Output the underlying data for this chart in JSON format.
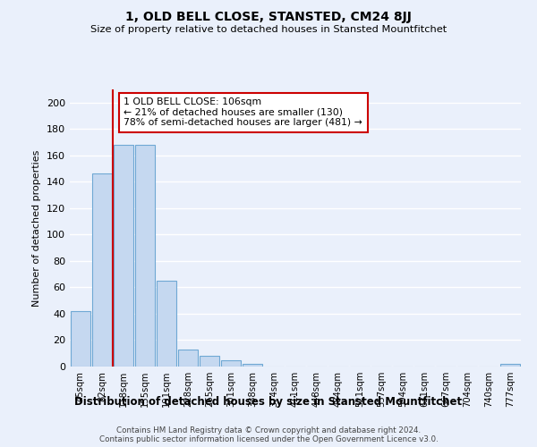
{
  "title1": "1, OLD BELL CLOSE, STANSTED, CM24 8JJ",
  "title2": "Size of property relative to detached houses in Stansted Mountfitchet",
  "xlabel": "Distribution of detached houses by size in Stansted Mountfitchet",
  "ylabel": "Number of detached properties",
  "categories": [
    "45sqm",
    "82sqm",
    "118sqm",
    "155sqm",
    "191sqm",
    "228sqm",
    "265sqm",
    "301sqm",
    "338sqm",
    "374sqm",
    "411sqm",
    "448sqm",
    "484sqm",
    "521sqm",
    "557sqm",
    "594sqm",
    "631sqm",
    "667sqm",
    "704sqm",
    "740sqm",
    "777sqm"
  ],
  "values": [
    42,
    146,
    168,
    168,
    65,
    13,
    8,
    5,
    2,
    0,
    0,
    0,
    0,
    0,
    0,
    0,
    0,
    0,
    0,
    0,
    2
  ],
  "bar_color": "#c5d8f0",
  "bar_edge_color": "#6fa8d4",
  "red_line_x": 1.5,
  "annotation_line1": "1 OLD BELL CLOSE: 106sqm",
  "annotation_line2": "← 21% of detached houses are smaller (130)",
  "annotation_line3": "78% of semi-detached houses are larger (481) →",
  "annotation_box_color": "#ffffff",
  "annotation_box_edge": "#cc0000",
  "ylim": [
    0,
    210
  ],
  "yticks": [
    0,
    20,
    40,
    60,
    80,
    100,
    120,
    140,
    160,
    180,
    200
  ],
  "footer1": "Contains HM Land Registry data © Crown copyright and database right 2024.",
  "footer2": "Contains public sector information licensed under the Open Government Licence v3.0.",
  "bg_color": "#eaf0fb",
  "grid_color": "#ffffff"
}
